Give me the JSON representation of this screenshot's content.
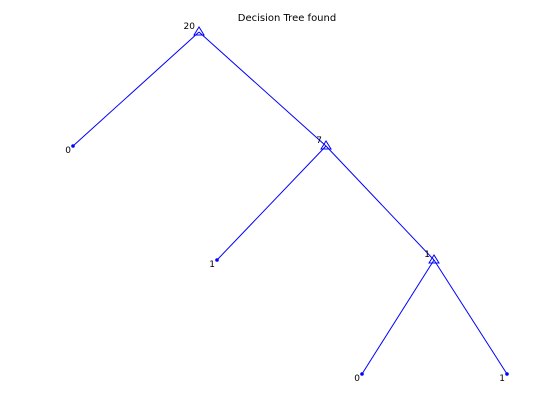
{
  "figure": {
    "title": "Decision Tree found"
  },
  "colors": {
    "edge": "#0000ff",
    "node": "#0000ff",
    "label": "#000000",
    "background": "#ffffff"
  },
  "tree": {
    "nodes": [
      {
        "id": "root",
        "type": "split",
        "label": "20",
        "parent": null
      },
      {
        "id": "leaf-a",
        "type": "leaf",
        "label": "0",
        "parent": "root"
      },
      {
        "id": "split-b",
        "type": "split",
        "label": "7",
        "parent": "root"
      },
      {
        "id": "leaf-b1",
        "type": "leaf",
        "label": "1",
        "parent": "split-b"
      },
      {
        "id": "split-c",
        "type": "split",
        "label": "1",
        "parent": "split-b"
      },
      {
        "id": "leaf-c0",
        "type": "leaf",
        "label": "0",
        "parent": "split-c"
      },
      {
        "id": "leaf-c1",
        "type": "leaf",
        "label": "1",
        "parent": "split-c"
      }
    ]
  }
}
